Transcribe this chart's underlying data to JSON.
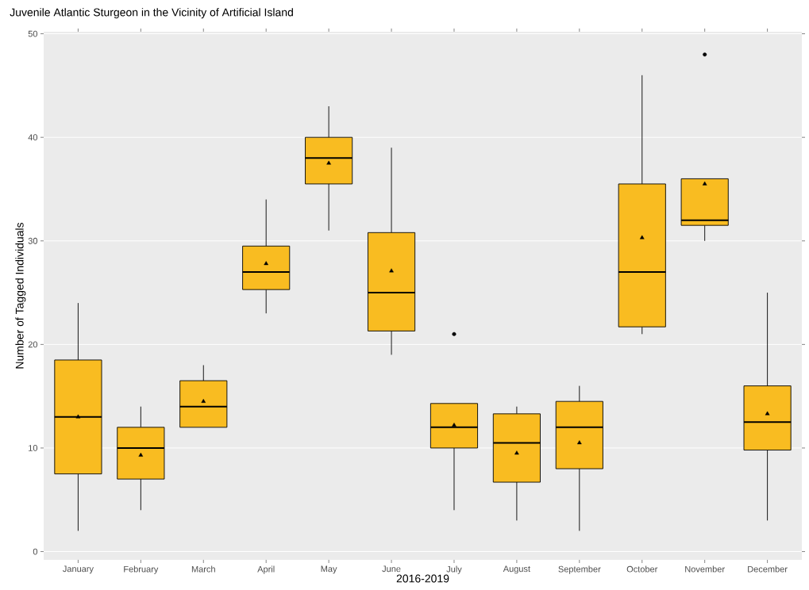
{
  "chart_data": {
    "type": "box",
    "title": "Juvenile Atlantic Sturgeon in the Vicinity of Artificial Island",
    "xlabel": "2016-2019",
    "ylabel": "Number of Tagged Individuals",
    "categories": [
      "January",
      "February",
      "March",
      "April",
      "May",
      "June",
      "July",
      "August",
      "September",
      "October",
      "November",
      "December"
    ],
    "color": "#f9bc21",
    "boxes": [
      {
        "low": 2,
        "q1": 7.5,
        "median": 13,
        "q3": 18.5,
        "high": 24,
        "mean": 13
      },
      {
        "low": 4,
        "q1": 7,
        "median": 10,
        "q3": 12,
        "high": 14,
        "mean": 9.3
      },
      {
        "low": 12,
        "q1": 12,
        "median": 14,
        "q3": 16.5,
        "high": 18,
        "mean": 14.5
      },
      {
        "low": 23,
        "q1": 25.3,
        "median": 27,
        "q3": 29.5,
        "high": 34,
        "mean": 27.8
      },
      {
        "low": 31,
        "q1": 35.5,
        "median": 38,
        "q3": 40,
        "high": 43,
        "mean": 37.5
      },
      {
        "low": 19,
        "q1": 21.3,
        "median": 25,
        "q3": 30.8,
        "high": 39,
        "mean": 27.1
      },
      {
        "low": 4,
        "q1": 10,
        "median": 12,
        "q3": 14.3,
        "high": 14.3,
        "mean": 12.2,
        "outliers": [
          21
        ]
      },
      {
        "low": 3,
        "q1": 6.7,
        "median": 10.5,
        "q3": 13.3,
        "high": 14,
        "mean": 9.5
      },
      {
        "low": 2,
        "q1": 8,
        "median": 12,
        "q3": 14.5,
        "high": 16,
        "mean": 10.5
      },
      {
        "low": 21,
        "q1": 21.7,
        "median": 27,
        "q3": 35.5,
        "high": 46,
        "mean": 30.3
      },
      {
        "low": 30,
        "q1": 31.5,
        "median": 32,
        "q3": 36,
        "high": 36,
        "mean": 35.5,
        "outliers": [
          48
        ]
      },
      {
        "low": 3,
        "q1": 9.8,
        "median": 12.5,
        "q3": 16,
        "high": 25,
        "mean": 13.3
      }
    ],
    "ylim": [
      -0.8,
      50.2
    ],
    "yticks": [
      0,
      10,
      20,
      30,
      40,
      50
    ],
    "grid": "y"
  }
}
